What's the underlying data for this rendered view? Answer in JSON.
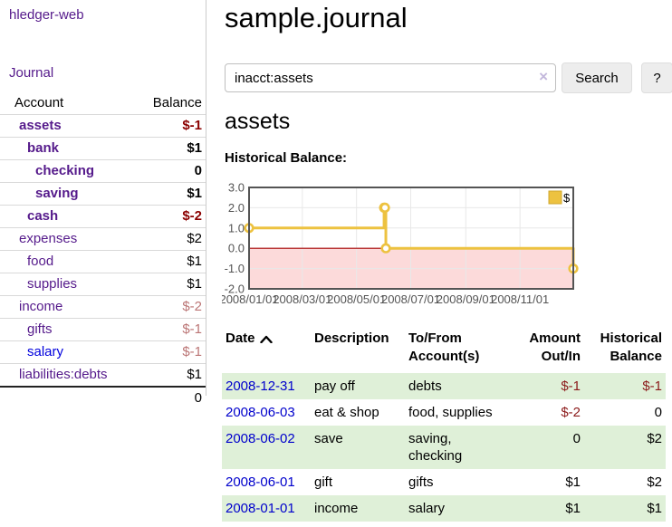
{
  "app": {
    "brand": "hledger-web"
  },
  "sidebar": {
    "nav": {
      "journal": "Journal"
    },
    "headers": {
      "account": "Account",
      "balance": "Balance"
    },
    "accounts": [
      {
        "name": "assets",
        "balance": "$-1"
      },
      {
        "name": "bank",
        "balance": "$1"
      },
      {
        "name": "checking",
        "balance": "0"
      },
      {
        "name": "saving",
        "balance": "$1"
      },
      {
        "name": "cash",
        "balance": "$-2"
      },
      {
        "name": "expenses",
        "balance": "$2"
      },
      {
        "name": "food",
        "balance": "$1"
      },
      {
        "name": "supplies",
        "balance": "$1"
      },
      {
        "name": "income",
        "balance": "$-2"
      },
      {
        "name": "gifts",
        "balance": "$-1"
      },
      {
        "name": "salary",
        "balance": "$-1"
      },
      {
        "name": "liabilities:debts",
        "balance": "$1"
      }
    ],
    "total": "0"
  },
  "main": {
    "title": "sample.journal",
    "search": {
      "value": "inacct:assets",
      "clear_icon": "×",
      "button": "Search",
      "help": "?"
    },
    "account_heading": "assets",
    "chart_label": "Historical Balance:"
  },
  "chart_data": {
    "type": "line",
    "title": "Historical Balance",
    "steps": true,
    "series": [
      {
        "name": "$",
        "color": "#edc240",
        "points": [
          [
            "2008-01-01",
            1
          ],
          [
            "2008-06-01",
            2
          ],
          [
            "2008-06-02",
            2
          ],
          [
            "2008-06-03",
            0
          ],
          [
            "2008-12-31",
            -1
          ]
        ]
      }
    ],
    "x_range": [
      "2008-01-01",
      "2008-12-31"
    ],
    "ylim": [
      -2,
      3
    ],
    "y_ticks": [
      3.0,
      2.0,
      1.0,
      0.0,
      -1.0,
      -2.0
    ],
    "x_ticks": [
      "2008/01/01",
      "2008/03/01",
      "2008/05/01",
      "2008/07/01",
      "2008/09/01",
      "2008/11/01"
    ],
    "legend": {
      "label": "$",
      "position": "top-right"
    },
    "grid": true,
    "zero_line_color": "#a40000",
    "negative_region_color": "#fcdada",
    "grid_color": "#e8e8e8",
    "border_color": "#545454"
  },
  "register": {
    "headers": {
      "date": "Date",
      "description": "Description",
      "accounts": "To/From Account(s)",
      "amount": "Amount Out/In",
      "balance": "Historical Balance"
    },
    "rows": [
      {
        "date": "2008-12-31",
        "description": "pay off",
        "accounts": "debts",
        "amount": "$-1",
        "balance": "$-1"
      },
      {
        "date": "2008-06-03",
        "description": "eat & shop",
        "accounts": "food, supplies",
        "amount": "$-2",
        "balance": "0"
      },
      {
        "date": "2008-06-02",
        "description": "save",
        "accounts": "saving, checking",
        "amount": "0",
        "balance": "$2"
      },
      {
        "date": "2008-06-01",
        "description": "gift",
        "accounts": "gifts",
        "amount": "$1",
        "balance": "$2"
      },
      {
        "date": "2008-01-01",
        "description": "income",
        "accounts": "salary",
        "amount": "$1",
        "balance": "$1"
      }
    ]
  }
}
